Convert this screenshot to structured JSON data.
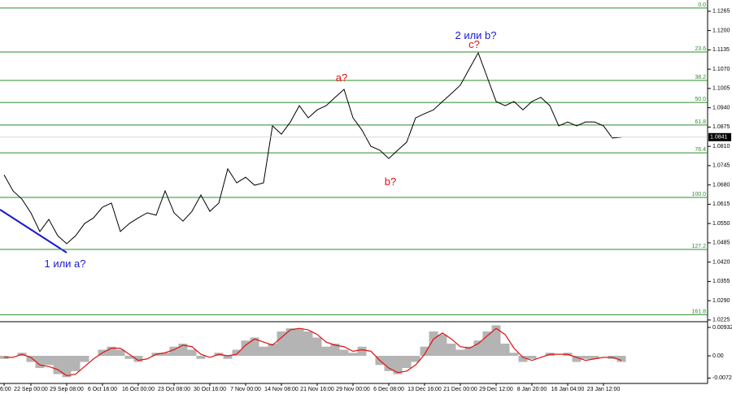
{
  "chart_data": {
    "type": "line",
    "categories": [
      "6:00",
      null,
      null,
      "22 Sep 00:00",
      null,
      null,
      null,
      "29 Sep 08:00",
      null,
      null,
      null,
      "6 Oct 16:00",
      null,
      null,
      null,
      "16 Oct 00:00",
      null,
      null,
      null,
      "23 Oct 08:00",
      null,
      null,
      null,
      "30 Oct 16:00",
      null,
      null,
      null,
      "7 Nov 00:00",
      null,
      null,
      null,
      "14 Nov 08:00",
      null,
      null,
      null,
      "21 Nov 16:00",
      null,
      null,
      null,
      "29 Nov 00:00",
      null,
      null,
      null,
      "6 Dec 08:00",
      null,
      null,
      null,
      "13 Dec 16:00",
      null,
      null,
      null,
      "21 Dec 00:00",
      null,
      null,
      null,
      "29 Dec 12:00",
      null,
      null,
      null,
      "8 Jan 20:00",
      null,
      null,
      null,
      "16 Jan 04:00",
      null,
      null,
      null,
      "23 Jan 12:00",
      null,
      null
    ],
    "series": [
      {
        "color": "#000000",
        "values": [
          1.0714,
          1.066,
          1.0632,
          1.0586,
          1.0523,
          1.0564,
          1.0509,
          1.0482,
          1.0509,
          1.055,
          1.0569,
          1.0605,
          1.0619,
          1.0523,
          1.055,
          1.0569,
          1.0586,
          1.0578,
          1.066,
          1.0586,
          1.0558,
          1.0591,
          1.0646,
          1.0591,
          1.0619,
          1.0734,
          1.0687,
          1.0706,
          1.0679,
          1.0687,
          1.0879,
          1.0851,
          1.0892,
          1.0947,
          1.0906,
          1.0933,
          1.0947,
          1.0975,
          1.1002,
          1.0906,
          1.0865,
          1.081,
          1.0797,
          1.0769,
          1.0797,
          1.0824,
          1.0906,
          1.092,
          1.0933,
          1.0961,
          1.0988,
          1.1016,
          1.1071,
          1.1125,
          1.1043,
          1.0961,
          1.0947,
          1.0961,
          1.0933,
          1.0961,
          1.0975,
          1.0947,
          1.0879,
          1.0892,
          1.0879,
          1.0892,
          1.0892,
          1.0879,
          1.0838,
          1.0841
        ]
      }
    ],
    "ylim": [
      1.0222,
      1.1303
    ],
    "yticks": [
      1.1265,
      {
        "value": 1.12,
        "label": "1.1200"
      },
      1.1135,
      {
        "value": 1.107,
        "label": "1.1070"
      },
      1.1005,
      {
        "value": 1.094,
        "label": "1.0940"
      },
      1.0875,
      {
        "value": 1.081,
        "label": "1.0810"
      },
      1.0745,
      {
        "value": 1.068,
        "label": "1.0680"
      },
      1.0615,
      {
        "value": 1.055,
        "label": "1.0550"
      },
      1.0485,
      {
        "value": 1.042,
        "label": "1.0420"
      },
      1.0355,
      {
        "value": 1.029,
        "label": "1.0290"
      },
      1.0225
    ],
    "last_price": 1.0841,
    "fib_color": "#2e8b2e",
    "fib_levels": [
      {
        "value": 1.1276,
        "label": "0.0"
      },
      {
        "value": 1.1128,
        "label": "23.6"
      },
      {
        "value": 1.1032,
        "label": "38.2"
      },
      {
        "value": 1.0958,
        "label": "50.0"
      },
      {
        "value": 1.0882,
        "label": "61.8"
      },
      {
        "value": 1.0788,
        "label": "76.4"
      },
      {
        "value": 1.0638,
        "label": "100.0"
      },
      {
        "value": 1.0463,
        "label": "127.2"
      },
      {
        "value": 1.0243,
        "label": "161.8"
      }
    ],
    "annotations": [
      {
        "text": "2 или b?",
        "color": "#1a1ad6"
      },
      {
        "text": "c?",
        "color": "#e01010"
      },
      {
        "text": "a?",
        "color": "#e01010"
      },
      {
        "text": "b?",
        "color": "#e01010"
      },
      {
        "text": "1 или a?",
        "color": "#1a1ad6"
      }
    ],
    "oscillator": {
      "histogram_color": "#b4b4b4",
      "signal_color": "#e01010",
      "ylim": [
        -0.00905,
        0.01065
      ],
      "yticks": [
        0.00932,
        {
          "value": 0,
          "label": "0.00"
        },
        -0.00728
      ],
      "histogram": [
        -0.001,
        0,
        0.001,
        -0.002,
        -0.004,
        -0.003,
        -0.006,
        -0.007,
        -0.005,
        -0.002,
        0,
        0.002,
        0.003,
        0.002,
        -0.001,
        -0.002,
        0,
        0.001,
        0.001,
        0.003,
        0.004,
        0.002,
        -0.001,
        0,
        0.001,
        -0.001,
        0.002,
        0.005,
        0.006,
        0.003,
        0.004,
        0.008,
        0.009,
        0.009,
        0.008,
        0.006,
        0.003,
        0.004,
        0.002,
        0.001,
        0.003,
        0,
        -0.003,
        -0.005,
        -0.006,
        -0.004,
        -0.002,
        0.003,
        0.008,
        0.007,
        0.004,
        0.002,
        0.003,
        0.005,
        0.008,
        0.01,
        0.004,
        0.001,
        -0.002,
        -0.001,
        0,
        0.001,
        0,
        0.001,
        -0.002,
        -0.001,
        -0.001,
        0,
        -0.001,
        -0.002
      ],
      "signal": [
        -0.0005,
        -0.0005,
        0.0005,
        -0.0005,
        -0.003,
        -0.0035,
        -0.0045,
        -0.0065,
        -0.006,
        -0.0035,
        -0.001,
        0.001,
        0.0025,
        0.0025,
        0.0005,
        -0.0015,
        -0.001,
        0.0005,
        0.001,
        0.002,
        0.0035,
        0.003,
        0.0005,
        -0.0005,
        0.0005,
        0,
        0.0005,
        0.0035,
        0.0055,
        0.0045,
        0.0035,
        0.006,
        0.0085,
        0.009,
        0.0085,
        0.007,
        0.0045,
        0.0035,
        0.003,
        0.0015,
        0.002,
        0.0015,
        -0.0015,
        -0.004,
        -0.0055,
        -0.005,
        -0.003,
        0.0005,
        0.0055,
        0.0075,
        0.0055,
        0.003,
        0.0025,
        0.004,
        0.0065,
        0.009,
        0.007,
        0.0025,
        -0.0005,
        -0.0015,
        -0.0005,
        0.0005,
        0.0005,
        0.0005,
        -0.0005,
        -0.0015,
        -0.001,
        -0.0005,
        -0.0005,
        -0.0015
      ]
    }
  }
}
